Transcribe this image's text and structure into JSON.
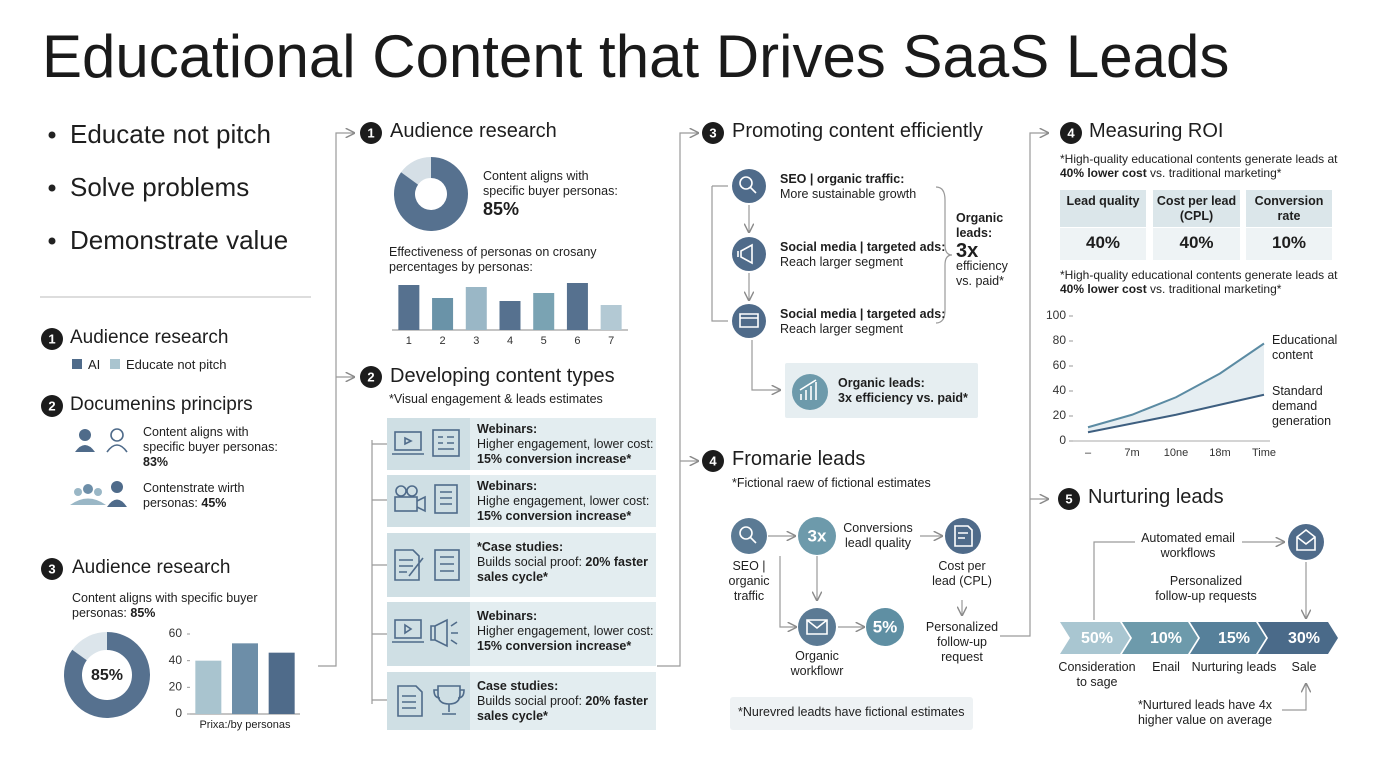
{
  "title": "Educational Content that Drives SaaS Leads",
  "bullets": [
    "Educate not pitch",
    "Solve problems",
    "Demonstrate value"
  ],
  "left": {
    "audience": {
      "number": "1",
      "title": "Audience research",
      "legend": [
        {
          "name": "AI",
          "color": "#4f6b8a"
        },
        {
          "name": "Educate not pitch",
          "color": "#a9c4cf"
        }
      ]
    },
    "principles": {
      "number": "2",
      "title": "Documenins principrs",
      "items": [
        {
          "text": "Content aligns with specific buyer personas:",
          "value": "83%"
        },
        {
          "text": "Contenstrate wirth personas:",
          "value": "45%"
        }
      ]
    },
    "research": {
      "number": "3",
      "title": "Audience research",
      "text": "Content aligns with specific buyer personas:",
      "value": "85%",
      "donut": {
        "type": "pie",
        "values": [
          85
        ],
        "value_labels": [
          "85%"
        ],
        "color": "#56718f",
        "rest_color": "#dce5eb"
      },
      "bars": {
        "type": "bar",
        "values": [
          40,
          53,
          46
        ],
        "colors": [
          "#a9c4cf",
          "#6d8ea8",
          "#4f6b8a"
        ],
        "ylim": [
          0,
          60
        ],
        "yticks": [
          0,
          20,
          40,
          60
        ],
        "xlabel": "Prixa:/by personas"
      }
    }
  },
  "middle": {
    "audience": {
      "number": "1",
      "title": "Audience research",
      "text": "Content aligns with specific buyer personas:",
      "donut": {
        "type": "pie",
        "values": [
          85
        ],
        "value_labels": [
          "85%"
        ],
        "color": "#56718f",
        "rest_color": "#d5dfe6"
      },
      "caption": "Effectiveness of personas on crosany percentages by personas:",
      "bars": {
        "type": "bar",
        "categories": [
          "1",
          "2",
          "3",
          "4",
          "5",
          "6",
          "7"
        ],
        "values": [
          45,
          32,
          43,
          29,
          37,
          47,
          25
        ],
        "colors": [
          "#56718f",
          "#6a93a8",
          "#9ab7c6",
          "#56718f",
          "#7aa3b3",
          "#56718f",
          "#b3c9d4"
        ],
        "ylim": [
          0,
          50
        ]
      }
    },
    "content_types": {
      "number": "2",
      "title": "Developing content types",
      "subtitle": "*Visual engagement & leads estimates",
      "cards": [
        {
          "heading": "Webinars:",
          "body": "Higher engagement, lower cost:",
          "bold": "15% conversion increase*"
        },
        {
          "heading": "Webinars:",
          "body": "Highe engagement, lower cost:",
          "bold": "15% conversion increase*"
        },
        {
          "heading": "*Case studies:",
          "body": "Builds social proof:",
          "bold": "20% faster sales cycle*"
        },
        {
          "heading": "Webinars:",
          "body": "Higher engagement, lower cost:",
          "bold": "15% conversion increase*"
        },
        {
          "heading": "Case studies:",
          "body": "Builds social proof:",
          "bold": "20% faster sales cycle*"
        }
      ]
    }
  },
  "promoting": {
    "number": "3",
    "title": "Promoting content efficiently",
    "items": [
      {
        "heading": "SEO | organic traffic:",
        "text": "More sustainable growth"
      },
      {
        "heading": "Social media | targeted ads:",
        "text": "Reach larger segment"
      },
      {
        "heading": "Social media | targeted ads:",
        "text": "Reach larger segment"
      }
    ],
    "brace": {
      "heading": "Organic leads:",
      "value": "3x",
      "text": "efficiency vs. paid*"
    },
    "box": {
      "heading": "Organic leads:",
      "text": "3x efficiency vs. paid*"
    }
  },
  "leads": {
    "number": "4",
    "title": "Fromarie leads",
    "subtitle": "*Fictional raew of fictional estimates",
    "nodes": {
      "seo": "SEO | organic traffic",
      "multiplier": "3x",
      "conversions": "Conversions leadl quality",
      "cost": "Cost per lead (CPL)",
      "workflow": "Organic workflowr",
      "rate": "5%",
      "followup": "Personalized follow-up request"
    },
    "note": "*Nurevred leadts have fictional estimates"
  },
  "roi": {
    "number": "4",
    "title": "Measuring ROI",
    "note": [
      "*High-quality educational contents generate leads at ",
      "40% lower cost",
      " vs. traditional marketing*"
    ],
    "table": {
      "headers": [
        "Lead quality",
        "Cost per lead (CPL)",
        "Conversion rate"
      ],
      "values": [
        "40%",
        "40%",
        "10%"
      ]
    },
    "note2": [
      "*High-quality educational contents generate leads at ",
      "40% lower cost",
      " vs. traditional marketing*"
    ],
    "chart": {
      "type": "line",
      "categories": [
        "–",
        "7m",
        "10ne",
        "18m",
        "Time"
      ],
      "series": [
        {
          "name": "Educational content",
          "color": "#5b8ba3",
          "values": [
            11,
            21,
            35,
            54,
            78
          ]
        },
        {
          "name": "Standard demand generation",
          "color": "#3e5f80",
          "values": [
            7,
            14,
            21,
            29,
            37
          ]
        }
      ],
      "ylim": [
        0,
        100
      ],
      "yticks": [
        0,
        20,
        40,
        60,
        80,
        100
      ]
    }
  },
  "nurturing": {
    "number": "5",
    "title": "Nurturing leads",
    "automated": "Automated email workflows",
    "personalized": "Personalized follow-up requests",
    "stages": [
      {
        "value": "50%",
        "label": "Consideration to sage",
        "color": "#a9c6d1"
      },
      {
        "value": "10%",
        "label": "Enail",
        "color": "#6d9aab"
      },
      {
        "value": "15%",
        "label": "Nurturing leads",
        "color": "#56809a"
      },
      {
        "value": "30%",
        "label": "Sale",
        "color": "#4a6a89"
      }
    ],
    "note": "*Nurtured leads have 4x higher value on average"
  }
}
